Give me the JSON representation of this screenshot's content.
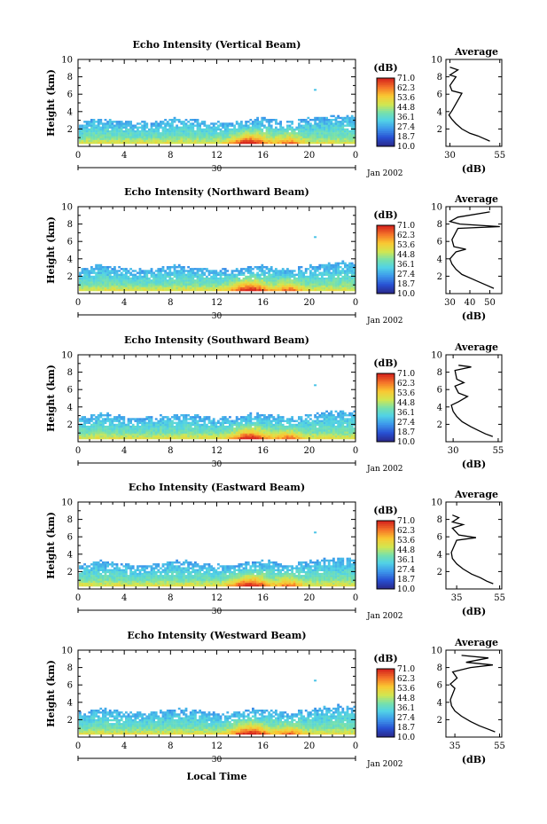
{
  "figure": {
    "xlabel": "Local Time",
    "date_label": "Jan 2002",
    "day_label": "30"
  },
  "colorbar": {
    "unit": "(dB)",
    "ticks": [
      "71.0",
      "62.3",
      "53.6",
      "44.8",
      "36.1",
      "27.4",
      "18.7",
      "10.0"
    ]
  },
  "chart_data": [
    {
      "type": "heatmap",
      "title": "Echo Intensity (Vertical Beam)",
      "ylabel": "Height (km)",
      "xticks": [
        "0",
        "4",
        "8",
        "12",
        "16",
        "20",
        "0"
      ],
      "yticks": [
        "2",
        "4",
        "6",
        "8",
        "10"
      ],
      "ylim": [
        0,
        10
      ],
      "xlim": [
        0,
        24
      ],
      "profile": {
        "title": "Average",
        "xlabel": "(dB)",
        "xticks": [
          "30",
          "55"
        ],
        "xlim": [
          28,
          56
        ],
        "points": [
          [
            50,
            0.6
          ],
          [
            47,
            0.9
          ],
          [
            44,
            1.2
          ],
          [
            40,
            1.5
          ],
          [
            36,
            2
          ],
          [
            33,
            2.6
          ],
          [
            31,
            3.1
          ],
          [
            29.5,
            3.6
          ],
          [
            31,
            4.1
          ],
          [
            36,
            6.1
          ],
          [
            31,
            6.4
          ],
          [
            30,
            7
          ],
          [
            33,
            8
          ],
          [
            30,
            8.2
          ],
          [
            34,
            8.8
          ],
          [
            30,
            9.1
          ]
        ]
      }
    },
    {
      "type": "heatmap",
      "title": "Echo Intensity (Northward Beam)",
      "ylabel": "Height (km)",
      "xticks": [
        "0",
        "4",
        "8",
        "12",
        "16",
        "20",
        "0"
      ],
      "yticks": [
        "2",
        "4",
        "6",
        "8",
        "10"
      ],
      "ylim": [
        0,
        10
      ],
      "xlim": [
        0,
        24
      ],
      "profile": {
        "title": "Average",
        "xlabel": "(dB)",
        "xticks": [
          "30",
          "40",
          "50"
        ],
        "xlim": [
          28,
          56
        ],
        "points": [
          [
            52,
            0.6
          ],
          [
            49,
            0.9
          ],
          [
            45,
            1.3
          ],
          [
            41,
            1.7
          ],
          [
            36,
            2.2
          ],
          [
            33,
            2.8
          ],
          [
            31,
            3.4
          ],
          [
            30,
            4
          ],
          [
            33,
            4.8
          ],
          [
            38,
            5.1
          ],
          [
            32,
            5.4
          ],
          [
            31,
            6.2
          ],
          [
            34,
            7.5
          ],
          [
            55,
            7.7
          ],
          [
            35,
            8
          ],
          [
            30,
            8.3
          ],
          [
            34,
            8.8
          ],
          [
            50,
            9.4
          ]
        ]
      }
    },
    {
      "type": "heatmap",
      "title": "Echo Intensity (Southward Beam)",
      "ylabel": "Height (km)",
      "xticks": [
        "0",
        "4",
        "8",
        "12",
        "16",
        "20",
        "0"
      ],
      "yticks": [
        "2",
        "4",
        "6",
        "8",
        "10"
      ],
      "ylim": [
        0,
        10
      ],
      "xlim": [
        0,
        24
      ],
      "profile": {
        "title": "Average",
        "xlabel": "(dB)",
        "xticks": [
          "30",
          "55"
        ],
        "xlim": [
          26,
          57
        ],
        "points": [
          [
            52,
            0.6
          ],
          [
            48,
            0.9
          ],
          [
            44,
            1.3
          ],
          [
            40,
            1.7
          ],
          [
            35,
            2.3
          ],
          [
            32,
            2.9
          ],
          [
            30,
            3.5
          ],
          [
            29,
            4.2
          ],
          [
            33,
            4.6
          ],
          [
            38,
            5.2
          ],
          [
            33,
            5.6
          ],
          [
            31,
            6.4
          ],
          [
            36,
            6.8
          ],
          [
            32,
            7.2
          ],
          [
            31,
            8.2
          ],
          [
            40,
            8.6
          ],
          [
            33,
            8.8
          ]
        ]
      }
    },
    {
      "type": "heatmap",
      "title": "Echo Intensity (Eastward Beam)",
      "ylabel": "Height (km)",
      "xticks": [
        "0",
        "4",
        "8",
        "12",
        "16",
        "20",
        "0"
      ],
      "yticks": [
        "2",
        "4",
        "6",
        "8",
        "10"
      ],
      "ylim": [
        0,
        10
      ],
      "xlim": [
        0,
        24
      ],
      "profile": {
        "title": "Average",
        "xlabel": "(dB)",
        "xticks": [
          "35",
          "55"
        ],
        "xlim": [
          30,
          56
        ],
        "points": [
          [
            52,
            0.6
          ],
          [
            49,
            0.9
          ],
          [
            46,
            1.3
          ],
          [
            42,
            1.7
          ],
          [
            38,
            2.3
          ],
          [
            35,
            2.9
          ],
          [
            33,
            3.5
          ],
          [
            32.5,
            4.2
          ],
          [
            35,
            5.6
          ],
          [
            44,
            5.9
          ],
          [
            36,
            6.2
          ],
          [
            33,
            7
          ],
          [
            38,
            7.4
          ],
          [
            33,
            7.7
          ],
          [
            36,
            8.2
          ],
          [
            33,
            8.5
          ]
        ]
      }
    },
    {
      "type": "heatmap",
      "title": "Echo Intensity (Westward Beam)",
      "ylabel": "Height (km)",
      "xticks": [
        "0",
        "4",
        "8",
        "12",
        "16",
        "20",
        "0"
      ],
      "yticks": [
        "2",
        "4",
        "6",
        "8",
        "10"
      ],
      "ylim": [
        0,
        10
      ],
      "xlim": [
        0,
        24
      ],
      "profile": {
        "title": "Average",
        "xlabel": "(dB)",
        "xticks": [
          "35",
          "55"
        ],
        "xlim": [
          31,
          56
        ],
        "points": [
          [
            53,
            0.6
          ],
          [
            50,
            0.9
          ],
          [
            46,
            1.3
          ],
          [
            42,
            1.8
          ],
          [
            38,
            2.4
          ],
          [
            35,
            3
          ],
          [
            33.5,
            3.6
          ],
          [
            33,
            4.3
          ],
          [
            35,
            5.6
          ],
          [
            33,
            6.1
          ],
          [
            36,
            6.8
          ],
          [
            34,
            7.5
          ],
          [
            42,
            8
          ],
          [
            52,
            8.3
          ],
          [
            40,
            8.6
          ],
          [
            50,
            9.1
          ],
          [
            38,
            9.4
          ]
        ]
      }
    }
  ]
}
